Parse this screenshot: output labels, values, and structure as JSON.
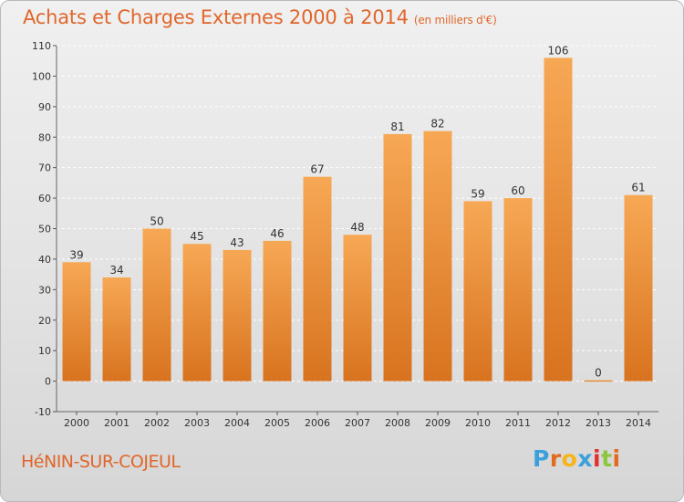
{
  "title": "Achats et Charges Externes 2000 à 2014",
  "subtitle": "(en milliers d'€)",
  "commune": "HéNIN-SUR-COJEUL",
  "logo": {
    "text": "Proxiti",
    "colors": [
      "#3aa0dc",
      "#e36a1f",
      "#f7b418",
      "#3aa0dc",
      "#e3302d",
      "#8cc63f",
      "#e36a1f"
    ]
  },
  "colors": {
    "title": "#e0662a",
    "bar_top": "#f7a855",
    "bar_bottom": "#d8731f",
    "grid": "#ffffff",
    "axis_text": "#333333"
  },
  "chart_data": {
    "type": "bar",
    "categories": [
      "2000",
      "2001",
      "2002",
      "2003",
      "2004",
      "2005",
      "2006",
      "2007",
      "2008",
      "2009",
      "2010",
      "2011",
      "2012",
      "2013",
      "2014"
    ],
    "values": [
      39,
      34,
      50,
      45,
      43,
      46,
      67,
      48,
      81,
      82,
      59,
      60,
      106,
      0,
      61
    ],
    "ylim": [
      -10,
      110
    ],
    "yticks": [
      -10,
      0,
      10,
      20,
      30,
      40,
      50,
      60,
      70,
      80,
      90,
      100,
      110
    ],
    "grid": true
  }
}
